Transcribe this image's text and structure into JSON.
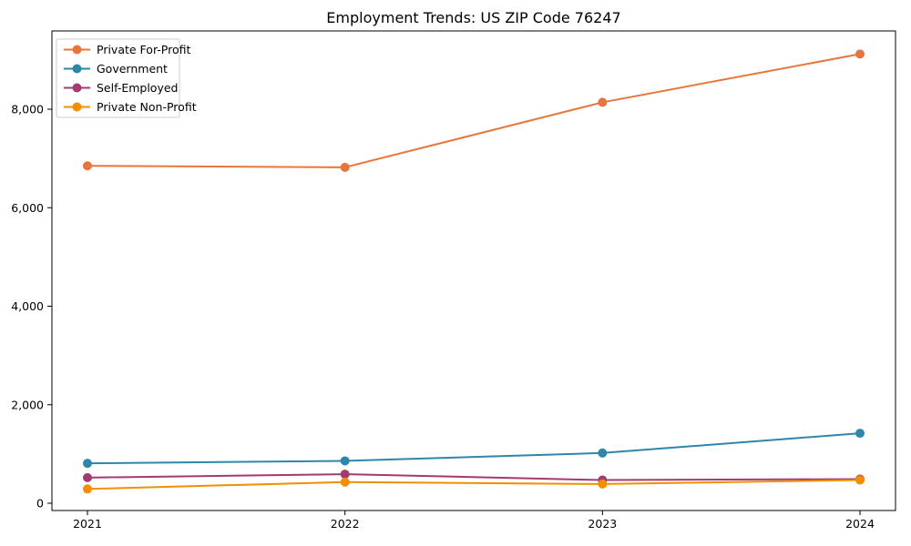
{
  "chart_data": {
    "type": "line",
    "title": "Employment Trends: US ZIP Code 76247",
    "x": [
      2021,
      2022,
      2023,
      2024
    ],
    "x_tick_labels": [
      "2021",
      "2022",
      "2023",
      "2024"
    ],
    "y_tick_values": [
      0,
      2000,
      4000,
      6000,
      8000
    ],
    "y_tick_labels": [
      "0",
      "2,000",
      "4,000",
      "6,000",
      "8,000"
    ],
    "ylim": [
      -150,
      9600
    ],
    "grid": false,
    "legend_position": "upper-left",
    "series": [
      {
        "name": "Private For-Profit",
        "color": "#E8763C",
        "values": [
          6850,
          6820,
          8140,
          9120
        ]
      },
      {
        "name": "Government",
        "color": "#2E86AB",
        "values": [
          810,
          860,
          1020,
          1420
        ]
      },
      {
        "name": "Self-Employed",
        "color": "#A23B72",
        "values": [
          520,
          590,
          470,
          490
        ]
      },
      {
        "name": "Private Non-Profit",
        "color": "#F18F01",
        "values": [
          290,
          430,
          390,
          470
        ]
      }
    ],
    "axis_color": "#000000",
    "legend_border_color": "#cccccc",
    "background_color": "#ffffff"
  }
}
